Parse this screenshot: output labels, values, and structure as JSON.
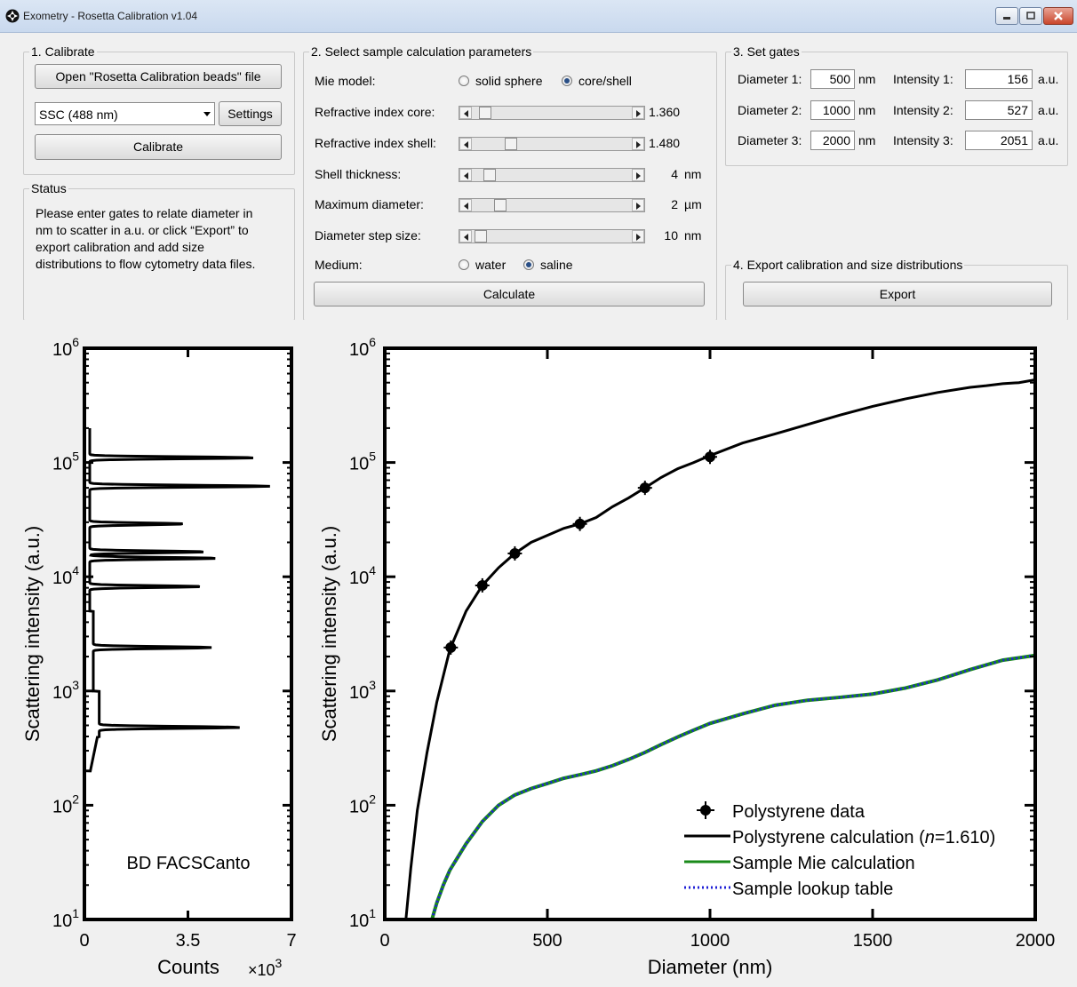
{
  "window": {
    "title": "Exometry - Rosetta Calibration v1.04"
  },
  "calibrate": {
    "group_label": "1. Calibrate",
    "open_button": "Open \"Rosetta Calibration beads\" file",
    "detector_select": "SSC (488 nm)",
    "settings_button": "Settings",
    "calibrate_button": "Calibrate"
  },
  "status": {
    "group_label": "Status",
    "lines": [
      "Please enter gates to relate diameter in",
      "nm to scatter in a.u. or click “Export” to",
      "export calibration and add size",
      "distributions to flow cytometry data files."
    ]
  },
  "params": {
    "group_label": "2. Select sample calculation parameters",
    "mie_model_label": "Mie model:",
    "mie_options": [
      "solid sphere",
      "core/shell"
    ],
    "mie_selected": 1,
    "rows": [
      {
        "label": "Refractive index core:",
        "value": "1.360",
        "unit": "",
        "level": 0.05
      },
      {
        "label": "Refractive index shell:",
        "value": "1.480",
        "unit": "",
        "level": 0.22
      },
      {
        "label": "Shell thickness:",
        "value": "4",
        "unit": "nm",
        "level": 0.08
      },
      {
        "label": "Maximum diameter:",
        "value": "2",
        "unit": "µm",
        "level": 0.15
      },
      {
        "label": "Diameter step size:",
        "value": "10",
        "unit": "nm",
        "level": 0.02
      }
    ],
    "medium_label": "Medium:",
    "medium_options": [
      "water",
      "saline"
    ],
    "medium_selected": 1,
    "calculate_button": "Calculate"
  },
  "gates": {
    "group_label": "3. Set gates",
    "rows": [
      {
        "dlabel": "Diameter 1:",
        "dval": "500",
        "dunit": "nm",
        "ilabel": "Intensity 1:",
        "ival": "156",
        "iunit": "a.u."
      },
      {
        "dlabel": "Diameter 2:",
        "dval": "1000",
        "dunit": "nm",
        "ilabel": "Intensity 2:",
        "ival": "527",
        "iunit": "a.u."
      },
      {
        "dlabel": "Diameter 3:",
        "dval": "2000",
        "dunit": "nm",
        "ilabel": "Intensity 3:",
        "ival": "2051",
        "iunit": "a.u."
      }
    ]
  },
  "export": {
    "group_label": "4. Export calibration and size distributions",
    "button": "Export"
  },
  "chart_data": [
    {
      "type": "line",
      "ylabel": "Scattering intensity (a.u.)",
      "xlabel": "Counts",
      "x_multiplier_label": "×10",
      "x_multiplier_exp": "3",
      "y_scale": "log",
      "ylim": [
        10,
        1000000
      ],
      "xlim": [
        0,
        7
      ],
      "x_ticks": [
        "0",
        "3.5",
        "7"
      ],
      "y_tick_exponents": [
        "1",
        "2",
        "3",
        "4",
        "5",
        "6"
      ],
      "annotation": "BD FACSCanto",
      "histogram_peaks": [
        {
          "intensity": 480,
          "counts": 5.1
        },
        {
          "intensity": 2400,
          "counts": 4.3
        },
        {
          "intensity": 8200,
          "counts": 4.1
        },
        {
          "intensity": 14500,
          "counts": 4.6
        },
        {
          "intensity": 16500,
          "counts": 4.2
        },
        {
          "intensity": 29000,
          "counts": 3.5
        },
        {
          "intensity": 62000,
          "counts": 6.4
        },
        {
          "intensity": 110000,
          "counts": 5.9
        }
      ]
    },
    {
      "type": "line",
      "ylabel": "Scattering intensity (a.u.)",
      "xlabel": "Diameter (nm)",
      "y_scale": "log",
      "xlim": [
        0,
        2000
      ],
      "ylim": [
        10,
        1000000
      ],
      "x_ticks": [
        "0",
        "500",
        "1000",
        "1500",
        "2000"
      ],
      "y_tick_exponents": [
        "1",
        "2",
        "3",
        "4",
        "5",
        "6"
      ],
      "legend": {
        "placement": "bottom-right",
        "entries": [
          {
            "label": "Polystyrene data",
            "color": "#000000",
            "style": "marker"
          },
          {
            "label_prefix": "Polystyrene calculation (",
            "label_italic": "n",
            "label_suffix": "=1.610)",
            "color": "#000000",
            "style": "solid"
          },
          {
            "label": "Sample Mie calculation",
            "color": "#1a8a1a",
            "style": "solid"
          },
          {
            "label": "Sample lookup table",
            "color": "#1f1fd6",
            "style": "dotted"
          }
        ]
      },
      "series": [
        {
          "name": "Polystyrene data",
          "type": "scatter",
          "x": [
            203,
            300,
            400,
            600,
            800,
            1000
          ],
          "y": [
            2400,
            8400,
            16000,
            29000,
            60000,
            112000
          ]
        },
        {
          "name": "Polystyrene calculation",
          "type": "line",
          "x": [
            65,
            80,
            100,
            130,
            160,
            200,
            250,
            300,
            350,
            400,
            450,
            500,
            550,
            600,
            650,
            700,
            750,
            800,
            850,
            900,
            950,
            1000,
            1100,
            1200,
            1300,
            1400,
            1500,
            1600,
            1700,
            1800,
            1850,
            1900,
            1950,
            2000
          ],
          "y": [
            10,
            28,
            90,
            290,
            800,
            2300,
            5000,
            8400,
            12000,
            16000,
            20000,
            23000,
            26500,
            29000,
            33000,
            41000,
            49000,
            60000,
            74000,
            88000,
            100000,
            115000,
            148000,
            178000,
            215000,
            260000,
            310000,
            360000,
            410000,
            455000,
            470000,
            490000,
            500000,
            530000
          ]
        },
        {
          "name": "Sample Mie calculation",
          "type": "line",
          "x": [
            145,
            160,
            180,
            200,
            250,
            300,
            350,
            400,
            450,
            500,
            550,
            600,
            650,
            700,
            750,
            800,
            850,
            900,
            950,
            1000,
            1100,
            1200,
            1300,
            1400,
            1500,
            1600,
            1700,
            1800,
            1900,
            2000
          ],
          "y": [
            10,
            14,
            20,
            27,
            46,
            72,
            100,
            123,
            140,
            155,
            172,
            185,
            200,
            222,
            252,
            290,
            340,
            395,
            455,
            520,
            630,
            750,
            830,
            880,
            940,
            1060,
            1250,
            1540,
            1860,
            2050
          ]
        },
        {
          "name": "Sample lookup table",
          "type": "line",
          "x": [
            145,
            160,
            180,
            200,
            250,
            300,
            350,
            400,
            450,
            500,
            550,
            600,
            650,
            700,
            750,
            800,
            850,
            900,
            950,
            1000,
            1100,
            1200,
            1300,
            1400,
            1500,
            1600,
            1700,
            1800,
            1900,
            2000
          ],
          "y": [
            10,
            14,
            20,
            27,
            46,
            72,
            100,
            123,
            140,
            155,
            172,
            185,
            200,
            222,
            252,
            290,
            340,
            395,
            455,
            520,
            630,
            750,
            830,
            880,
            940,
            1060,
            1250,
            1540,
            1860,
            2050
          ]
        }
      ]
    }
  ]
}
